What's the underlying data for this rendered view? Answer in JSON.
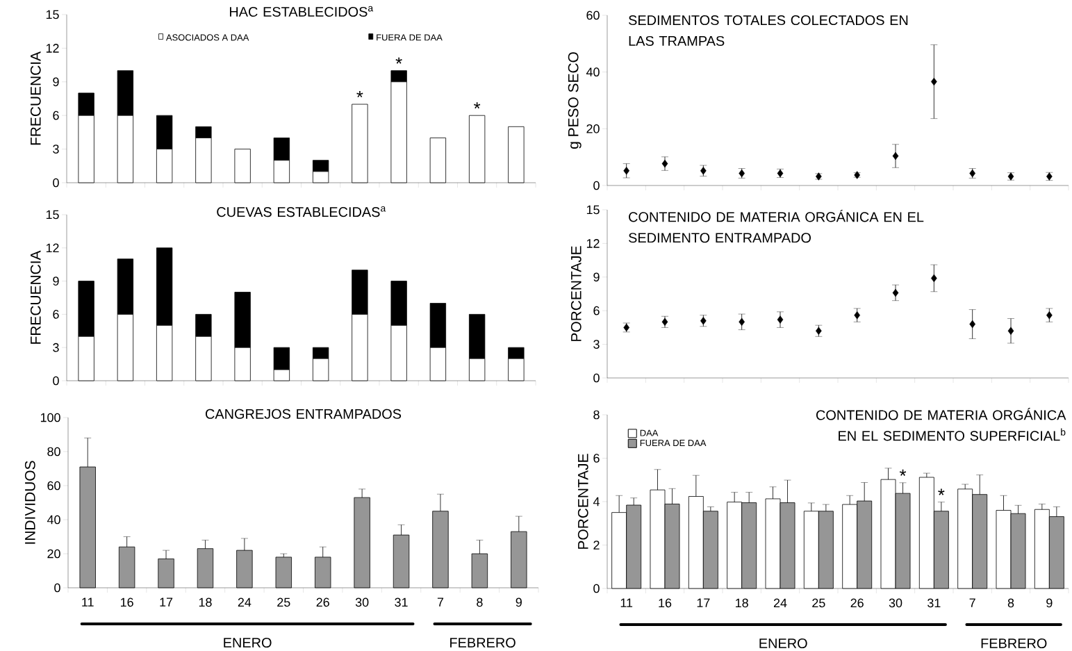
{
  "chart_data": [
    {
      "type": "bar",
      "stacked": true,
      "title": "HAC ESTABLECIDOS$^{a}$",
      "ylabel": "FRECUENCIA",
      "categories": [
        "11",
        "16",
        "17",
        "18",
        "24",
        "25",
        "26",
        "30",
        "31",
        "7",
        "8",
        "9"
      ],
      "ylim": [
        0,
        15
      ],
      "yticks": [
        0,
        3,
        6,
        9,
        12,
        15
      ],
      "tick_labels": "y",
      "legend": "top",
      "series": [
        {
          "name": "ASOCIADOS A DAA",
          "color": "#ffffff",
          "values": [
            6,
            6,
            3,
            4,
            3,
            2,
            1,
            7,
            9,
            4,
            6,
            5
          ]
        },
        {
          "name": "FUERA DE DAA",
          "color": "#000000",
          "values": [
            2,
            4,
            3,
            1,
            0,
            2,
            1,
            0,
            1,
            0,
            0,
            0
          ]
        }
      ],
      "annotations": [
        {
          "text": "*",
          "x": "30",
          "y": 7
        },
        {
          "text": "*",
          "x": "31",
          "y": 10
        },
        {
          "text": "*",
          "x": "8",
          "y": 6
        }
      ]
    },
    {
      "type": "scatter",
      "marker": "diamond",
      "title": "SEDIMENTOS TOTALES COLECTADOS EN LAS TRAMPAS",
      "ylabel": "g PESO SECO",
      "categories": [
        "11",
        "16",
        "17",
        "18",
        "24",
        "25",
        "26",
        "30",
        "31",
        "7",
        "8",
        "9"
      ],
      "ylim": [
        0,
        60
      ],
      "yticks": [
        0,
        20,
        40,
        60
      ],
      "tick_labels": "y",
      "series": [
        {
          "color": "#000000",
          "values": [
            5.2,
            7.7,
            5.2,
            4.3,
            4.3,
            3.2,
            3.7,
            10.4,
            36.6,
            4.3,
            3.2,
            3.2
          ],
          "errors": [
            2.5,
            2.4,
            1.9,
            1.7,
            1.5,
            1.0,
            0.8,
            4.1,
            13,
            1.7,
            1.3,
            1.4
          ]
        }
      ]
    },
    {
      "type": "bar",
      "stacked": true,
      "title": "CUEVAS ESTABLECIDAS$^{a}$",
      "ylabel": "FRECUENCIA",
      "categories": [
        "11",
        "16",
        "17",
        "18",
        "24",
        "25",
        "26",
        "30",
        "31",
        "7",
        "8",
        "9"
      ],
      "ylim": [
        0,
        15
      ],
      "yticks": [
        0,
        3,
        6,
        9,
        12,
        15
      ],
      "tick_labels": "y",
      "series": [
        {
          "color": "#ffffff",
          "values": [
            4,
            6,
            5,
            4,
            3,
            1,
            2,
            6,
            5,
            3,
            2,
            2
          ]
        },
        {
          "color": "#000000",
          "values": [
            5,
            5,
            7,
            2,
            5,
            2,
            1,
            4,
            4,
            4,
            4,
            1
          ]
        }
      ]
    },
    {
      "type": "scatter",
      "marker": "diamond",
      "title": "CONTENIDO DE MATERIA ORGÁNICA EN EL SEDIMENTO ENTRAMPADO",
      "ylabel": "PORCENTAJE",
      "categories": [
        "11",
        "16",
        "17",
        "18",
        "24",
        "25",
        "26",
        "30",
        "31",
        "7",
        "8",
        "9"
      ],
      "ylim": [
        0,
        15
      ],
      "yticks": [
        0,
        3,
        6,
        9,
        12,
        15
      ],
      "tick_labels": "y",
      "series": [
        {
          "color": "#000000",
          "values": [
            4.5,
            5.0,
            5.1,
            5.0,
            5.2,
            4.2,
            5.6,
            7.6,
            8.9,
            4.8,
            4.2,
            5.6
          ],
          "errors": [
            0.4,
            0.5,
            0.5,
            0.7,
            0.7,
            0.5,
            0.6,
            0.7,
            1.2,
            1.3,
            1.1,
            0.6
          ]
        }
      ]
    },
    {
      "type": "bar",
      "title": "CANGREJOS ENTRAMPADOS",
      "ylabel": "INDIVIDUOS",
      "categories": [
        "11",
        "16",
        "17",
        "18",
        "24",
        "25",
        "26",
        "30",
        "31",
        "7",
        "8",
        "9"
      ],
      "ylim": [
        0,
        100
      ],
      "yticks": [
        0,
        20,
        40,
        60,
        80,
        100
      ],
      "series": [
        {
          "color": "#969696",
          "values": [
            71,
            24,
            17,
            23,
            22,
            18,
            18,
            53,
            31,
            45,
            20,
            33
          ],
          "errors": [
            [
              71,
              88
            ],
            [
              24,
              30
            ],
            [
              17,
              22
            ],
            [
              23,
              28
            ],
            [
              22,
              29
            ],
            [
              18,
              20
            ],
            [
              18,
              24
            ],
            [
              53,
              58
            ],
            [
              31,
              37
            ],
            [
              45,
              55
            ],
            [
              20,
              28
            ],
            [
              33,
              42
            ]
          ]
        }
      ],
      "annotations": [
        "ENERO",
        "FEBRERO"
      ]
    },
    {
      "type": "bar",
      "title": "CONTENIDO DE MATERIA ORGÁNICA EN EL SEDIMENTO SUPERFICIAL$^{b}$",
      "ylabel": "PORCENTAJE",
      "categories": [
        "11",
        "16",
        "17",
        "18",
        "24",
        "25",
        "26",
        "30",
        "31",
        "7",
        "8",
        "9"
      ],
      "ylim": [
        0,
        8
      ],
      "yticks": [
        0,
        2,
        4,
        6,
        8
      ],
      "legend": "top left",
      "series": [
        {
          "name": "DAA",
          "color": "#ffffff",
          "values": [
            3.5,
            4.54,
            4.24,
            3.98,
            4.13,
            3.56,
            3.87,
            5.02,
            5.12,
            4.58,
            3.6,
            3.64
          ],
          "errors": [
            [
              3.5,
              4.28
            ],
            [
              4.54,
              5.48
            ],
            [
              4.24,
              5.21
            ],
            [
              3.98,
              4.43
            ],
            [
              4.13,
              4.68
            ],
            [
              3.56,
              3.94
            ],
            [
              3.87,
              4.28
            ],
            [
              5.02,
              5.54
            ],
            [
              5.12,
              5.31
            ],
            [
              4.58,
              4.8
            ],
            [
              3.6,
              4.28
            ],
            [
              3.64,
              3.89
            ]
          ]
        },
        {
          "name": "FUERA DE DAA",
          "color": "#969696",
          "values": [
            3.84,
            3.89,
            3.56,
            3.95,
            3.95,
            3.56,
            4.03,
            4.38,
            3.56,
            4.33,
            3.45,
            3.31
          ],
          "errors": [
            [
              3.84,
              4.17
            ],
            [
              3.89,
              4.6
            ],
            [
              3.56,
              3.76
            ],
            [
              3.95,
              4.43
            ],
            [
              3.95,
              4.99
            ],
            [
              3.56,
              3.87
            ],
            [
              4.03,
              4.88
            ],
            [
              4.38,
              4.87
            ],
            [
              3.56,
              3.98
            ],
            [
              4.33,
              5.23
            ],
            [
              3.45,
              3.83
            ],
            [
              3.31,
              3.76
            ]
          ]
        }
      ],
      "annotations": [
        {
          "text": "*",
          "x": "30",
          "y": 4.87
        },
        {
          "text": "*",
          "x": "31",
          "y": 3.98
        },
        "ENERO",
        "FEBRERO"
      ]
    }
  ]
}
